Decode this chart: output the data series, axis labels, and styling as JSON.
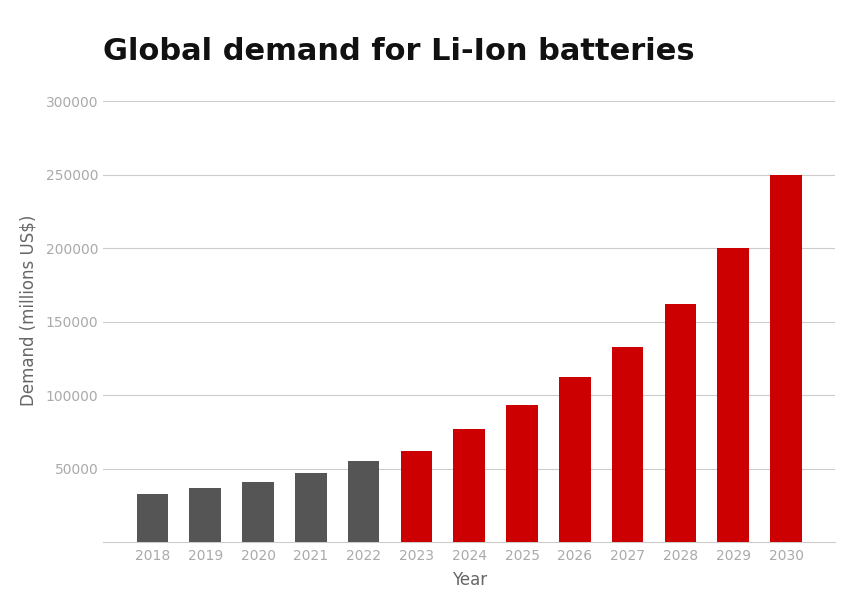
{
  "title": "Global demand for Li-Ion batteries",
  "xlabel": "Year",
  "ylabel": "Demand (millions US$)",
  "years": [
    2018,
    2019,
    2020,
    2021,
    2022,
    2023,
    2024,
    2025,
    2026,
    2027,
    2028,
    2029,
    2030
  ],
  "values": [
    33000,
    37000,
    41000,
    47000,
    55000,
    62000,
    77000,
    93000,
    112000,
    133000,
    162000,
    200000,
    250000
  ],
  "colors": [
    "#555555",
    "#555555",
    "#555555",
    "#555555",
    "#555555",
    "#cc0000",
    "#cc0000",
    "#cc0000",
    "#cc0000",
    "#cc0000",
    "#cc0000",
    "#cc0000",
    "#cc0000"
  ],
  "ylim": [
    0,
    315000
  ],
  "yticks": [
    50000,
    100000,
    150000,
    200000,
    250000,
    300000
  ],
  "ytick_labels": [
    "50000",
    "100000",
    "150000",
    "200000",
    "250000",
    "300000"
  ],
  "background_color": "#ffffff",
  "grid_color": "#cccccc",
  "title_fontsize": 22,
  "axis_label_fontsize": 12,
  "tick_fontsize": 10,
  "tick_color": "#aaaaaa",
  "bar_width": 0.6,
  "spine_color": "#cccccc"
}
